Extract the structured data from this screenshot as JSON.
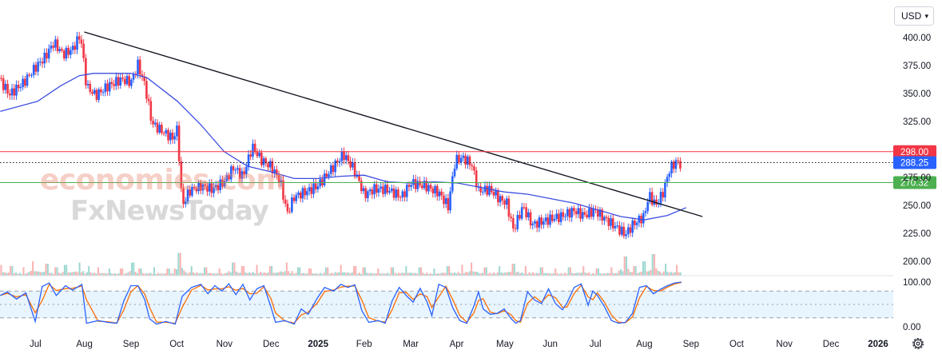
{
  "toolbar": {
    "currency": "USD"
  },
  "watermark": {
    "line1": "economies.com",
    "line2": "FxNewsToday"
  },
  "price_axis": {
    "ticks": [
      "400.00",
      "375.00",
      "350.00",
      "325.00",
      "275.00",
      "250.00",
      "225.00",
      "200.00"
    ]
  },
  "stoch_axis": {
    "ticks": [
      "100.00",
      "0.00"
    ]
  },
  "time_axis": {
    "ticks": [
      {
        "label": "Jul",
        "bold": false
      },
      {
        "label": "Aug",
        "bold": false
      },
      {
        "label": "Sep",
        "bold": false
      },
      {
        "label": "Oct",
        "bold": false
      },
      {
        "label": "Nov",
        "bold": false
      },
      {
        "label": "Dec",
        "bold": false
      },
      {
        "label": "2025",
        "bold": true
      },
      {
        "label": "Feb",
        "bold": false
      },
      {
        "label": "Mar",
        "bold": false
      },
      {
        "label": "Apr",
        "bold": false
      },
      {
        "label": "May",
        "bold": false
      },
      {
        "label": "Jun",
        "bold": false
      },
      {
        "label": "Jul",
        "bold": false
      },
      {
        "label": "Aug",
        "bold": false
      },
      {
        "label": "Sep",
        "bold": false
      },
      {
        "label": "Oct",
        "bold": false
      },
      {
        "label": "Nov",
        "bold": false
      },
      {
        "label": "Dec",
        "bold": false
      },
      {
        "label": "2026",
        "bold": true
      }
    ]
  },
  "levels": [
    {
      "value": 298.0,
      "label": "298.00",
      "color": "#f23645",
      "style": "solid"
    },
    {
      "value": 288.25,
      "label": "288.25",
      "color": "#2962ff",
      "style": "dotted"
    },
    {
      "value": 270.32,
      "label": "270.32",
      "color": "#4caf50",
      "style": "solid"
    }
  ],
  "chart_data": {
    "type": "candlestick",
    "x_unit": "month index (0 = start of Jul 2024)",
    "ylim": [
      190,
      410
    ],
    "trendline": [
      {
        "x": 1.0,
        "y": 405
      },
      {
        "x": 14.25,
        "y": 240
      }
    ],
    "moving_average": [
      {
        "x": -0.8,
        "y": 334
      },
      {
        "x": 0.0,
        "y": 343
      },
      {
        "x": 0.5,
        "y": 357
      },
      {
        "x": 0.9,
        "y": 366
      },
      {
        "x": 1.2,
        "y": 368
      },
      {
        "x": 2.0,
        "y": 368
      },
      {
        "x": 2.35,
        "y": 364
      },
      {
        "x": 3.0,
        "y": 343
      },
      {
        "x": 3.5,
        "y": 322
      },
      {
        "x": 4.0,
        "y": 298
      },
      {
        "x": 4.5,
        "y": 285
      },
      {
        "x": 5.0,
        "y": 280
      },
      {
        "x": 5.5,
        "y": 274
      },
      {
        "x": 6.0,
        "y": 274
      },
      {
        "x": 6.5,
        "y": 276
      },
      {
        "x": 7.0,
        "y": 277
      },
      {
        "x": 7.5,
        "y": 271
      },
      {
        "x": 8.0,
        "y": 270
      },
      {
        "x": 8.5,
        "y": 271
      },
      {
        "x": 9.0,
        "y": 270
      },
      {
        "x": 9.5,
        "y": 266
      },
      {
        "x": 10.0,
        "y": 262
      },
      {
        "x": 10.5,
        "y": 260
      },
      {
        "x": 11.0,
        "y": 256
      },
      {
        "x": 11.5,
        "y": 252
      },
      {
        "x": 12.0,
        "y": 246
      },
      {
        "x": 12.5,
        "y": 240
      },
      {
        "x": 13.0,
        "y": 237
      },
      {
        "x": 13.5,
        "y": 241
      },
      {
        "x": 13.9,
        "y": 248
      }
    ],
    "price_path": [
      {
        "x": -0.8,
        "y": 364
      },
      {
        "x": -0.6,
        "y": 350
      },
      {
        "x": -0.3,
        "y": 358
      },
      {
        "x": 0.0,
        "y": 373
      },
      {
        "x": 0.15,
        "y": 380
      },
      {
        "x": 0.35,
        "y": 395
      },
      {
        "x": 0.55,
        "y": 386
      },
      {
        "x": 0.75,
        "y": 392
      },
      {
        "x": 0.92,
        "y": 405
      },
      {
        "x": 1.05,
        "y": 358
      },
      {
        "x": 1.25,
        "y": 349
      },
      {
        "x": 1.5,
        "y": 355
      },
      {
        "x": 1.8,
        "y": 360
      },
      {
        "x": 2.0,
        "y": 358
      },
      {
        "x": 2.15,
        "y": 375
      },
      {
        "x": 2.3,
        "y": 358
      },
      {
        "x": 2.45,
        "y": 325
      },
      {
        "x": 2.7,
        "y": 318
      },
      {
        "x": 2.9,
        "y": 312
      },
      {
        "x": 3.0,
        "y": 320
      },
      {
        "x": 3.05,
        "y": 282
      },
      {
        "x": 3.1,
        "y": 250
      },
      {
        "x": 3.25,
        "y": 262
      },
      {
        "x": 3.5,
        "y": 265
      },
      {
        "x": 3.75,
        "y": 262
      },
      {
        "x": 4.0,
        "y": 270
      },
      {
        "x": 4.2,
        "y": 285
      },
      {
        "x": 4.4,
        "y": 278
      },
      {
        "x": 4.6,
        "y": 305
      },
      {
        "x": 4.8,
        "y": 292
      },
      {
        "x": 5.0,
        "y": 285
      },
      {
        "x": 5.2,
        "y": 270
      },
      {
        "x": 5.35,
        "y": 240
      },
      {
        "x": 5.5,
        "y": 255
      },
      {
        "x": 5.8,
        "y": 262
      },
      {
        "x": 6.0,
        "y": 268
      },
      {
        "x": 6.3,
        "y": 285
      },
      {
        "x": 6.55,
        "y": 298
      },
      {
        "x": 6.75,
        "y": 285
      },
      {
        "x": 6.9,
        "y": 270
      },
      {
        "x": 7.0,
        "y": 258
      },
      {
        "x": 7.2,
        "y": 262
      },
      {
        "x": 7.5,
        "y": 262
      },
      {
        "x": 7.8,
        "y": 258
      },
      {
        "x": 8.0,
        "y": 272
      },
      {
        "x": 8.3,
        "y": 270
      },
      {
        "x": 8.6,
        "y": 262
      },
      {
        "x": 8.8,
        "y": 248
      },
      {
        "x": 8.95,
        "y": 288
      },
      {
        "x": 9.1,
        "y": 290
      },
      {
        "x": 9.3,
        "y": 285
      },
      {
        "x": 9.45,
        "y": 262
      },
      {
        "x": 9.7,
        "y": 265
      },
      {
        "x": 9.9,
        "y": 258
      },
      {
        "x": 10.05,
        "y": 255
      },
      {
        "x": 10.2,
        "y": 230
      },
      {
        "x": 10.4,
        "y": 250
      },
      {
        "x": 10.6,
        "y": 232
      },
      {
        "x": 10.9,
        "y": 234
      },
      {
        "x": 11.2,
        "y": 238
      },
      {
        "x": 11.5,
        "y": 246
      },
      {
        "x": 11.7,
        "y": 243
      },
      {
        "x": 11.95,
        "y": 248
      },
      {
        "x": 12.2,
        "y": 238
      },
      {
        "x": 12.4,
        "y": 230
      },
      {
        "x": 12.6,
        "y": 222
      },
      {
        "x": 12.75,
        "y": 230
      },
      {
        "x": 12.9,
        "y": 235
      },
      {
        "x": 13.0,
        "y": 238
      },
      {
        "x": 13.1,
        "y": 258
      },
      {
        "x": 13.25,
        "y": 250
      },
      {
        "x": 13.4,
        "y": 262
      },
      {
        "x": 13.55,
        "y": 285
      },
      {
        "x": 13.7,
        "y": 292
      },
      {
        "x": 13.8,
        "y": 288
      }
    ],
    "stochastic": {
      "y_range": [
        0,
        100
      ],
      "bands": [
        20,
        50,
        80
      ],
      "k_path": [
        {
          "x": -0.8,
          "y": 70
        },
        {
          "x": -0.65,
          "y": 78
        },
        {
          "x": -0.45,
          "y": 62
        },
        {
          "x": -0.25,
          "y": 76
        },
        {
          "x": -0.05,
          "y": 12
        },
        {
          "x": 0.1,
          "y": 90
        },
        {
          "x": 0.25,
          "y": 98
        },
        {
          "x": 0.4,
          "y": 70
        },
        {
          "x": 0.6,
          "y": 92
        },
        {
          "x": 0.75,
          "y": 82
        },
        {
          "x": 0.95,
          "y": 95
        },
        {
          "x": 1.05,
          "y": 8
        },
        {
          "x": 1.3,
          "y": 14
        },
        {
          "x": 1.5,
          "y": 10
        },
        {
          "x": 1.7,
          "y": 8
        },
        {
          "x": 1.85,
          "y": 58
        },
        {
          "x": 2.0,
          "y": 92
        },
        {
          "x": 2.15,
          "y": 92
        },
        {
          "x": 2.3,
          "y": 60
        },
        {
          "x": 2.4,
          "y": 18
        },
        {
          "x": 2.55,
          "y": 6
        },
        {
          "x": 2.75,
          "y": 12
        },
        {
          "x": 2.95,
          "y": 6
        },
        {
          "x": 3.1,
          "y": 68
        },
        {
          "x": 3.3,
          "y": 88
        },
        {
          "x": 3.5,
          "y": 95
        },
        {
          "x": 3.65,
          "y": 74
        },
        {
          "x": 3.8,
          "y": 92
        },
        {
          "x": 3.95,
          "y": 80
        },
        {
          "x": 4.1,
          "y": 96
        },
        {
          "x": 4.25,
          "y": 72
        },
        {
          "x": 4.4,
          "y": 95
        },
        {
          "x": 4.55,
          "y": 60
        },
        {
          "x": 4.7,
          "y": 85
        },
        {
          "x": 4.85,
          "y": 92
        },
        {
          "x": 5.0,
          "y": 45
        },
        {
          "x": 5.1,
          "y": 10
        },
        {
          "x": 5.3,
          "y": 14
        },
        {
          "x": 5.5,
          "y": 6
        },
        {
          "x": 5.65,
          "y": 40
        },
        {
          "x": 5.8,
          "y": 28
        },
        {
          "x": 6.0,
          "y": 65
        },
        {
          "x": 6.15,
          "y": 88
        },
        {
          "x": 6.35,
          "y": 80
        },
        {
          "x": 6.5,
          "y": 95
        },
        {
          "x": 6.65,
          "y": 88
        },
        {
          "x": 6.8,
          "y": 94
        },
        {
          "x": 6.95,
          "y": 36
        },
        {
          "x": 7.1,
          "y": 10
        },
        {
          "x": 7.3,
          "y": 14
        },
        {
          "x": 7.45,
          "y": 8
        },
        {
          "x": 7.6,
          "y": 58
        },
        {
          "x": 7.75,
          "y": 88
        },
        {
          "x": 7.9,
          "y": 70
        },
        {
          "x": 8.05,
          "y": 55
        },
        {
          "x": 8.2,
          "y": 86
        },
        {
          "x": 8.35,
          "y": 55
        },
        {
          "x": 8.45,
          "y": 25
        },
        {
          "x": 8.6,
          "y": 95
        },
        {
          "x": 8.75,
          "y": 88
        },
        {
          "x": 8.9,
          "y": 42
        },
        {
          "x": 9.05,
          "y": 14
        },
        {
          "x": 9.2,
          "y": 8
        },
        {
          "x": 9.35,
          "y": 46
        },
        {
          "x": 9.45,
          "y": 78
        },
        {
          "x": 9.55,
          "y": 40
        },
        {
          "x": 9.7,
          "y": 28
        },
        {
          "x": 9.85,
          "y": 30
        },
        {
          "x": 10.0,
          "y": 40
        },
        {
          "x": 10.15,
          "y": 18
        },
        {
          "x": 10.25,
          "y": 8
        },
        {
          "x": 10.35,
          "y": 14
        },
        {
          "x": 10.5,
          "y": 78
        },
        {
          "x": 10.65,
          "y": 60
        },
        {
          "x": 10.8,
          "y": 52
        },
        {
          "x": 10.95,
          "y": 85
        },
        {
          "x": 11.1,
          "y": 52
        },
        {
          "x": 11.25,
          "y": 38
        },
        {
          "x": 11.35,
          "y": 54
        },
        {
          "x": 11.5,
          "y": 88
        },
        {
          "x": 11.65,
          "y": 96
        },
        {
          "x": 11.8,
          "y": 48
        },
        {
          "x": 11.9,
          "y": 80
        },
        {
          "x": 12.0,
          "y": 70
        },
        {
          "x": 12.15,
          "y": 45
        },
        {
          "x": 12.3,
          "y": 14
        },
        {
          "x": 12.45,
          "y": 8
        },
        {
          "x": 12.6,
          "y": 10
        },
        {
          "x": 12.75,
          "y": 30
        },
        {
          "x": 12.9,
          "y": 88
        },
        {
          "x": 13.05,
          "y": 92
        },
        {
          "x": 13.2,
          "y": 74
        },
        {
          "x": 13.35,
          "y": 84
        },
        {
          "x": 13.5,
          "y": 92
        },
        {
          "x": 13.65,
          "y": 98
        },
        {
          "x": 13.8,
          "y": 100
        }
      ]
    },
    "volume": [
      {
        "x": -0.78,
        "v": 0.45
      },
      {
        "x": -0.55,
        "v": 0.4
      },
      {
        "x": -0.3,
        "v": 0.35
      },
      {
        "x": -0.1,
        "v": 0.6
      },
      {
        "x": 0.2,
        "v": 0.5
      },
      {
        "x": 0.4,
        "v": 0.35
      },
      {
        "x": 0.6,
        "v": 0.45
      },
      {
        "x": 0.9,
        "v": 0.55
      },
      {
        "x": 1.1,
        "v": 0.4
      },
      {
        "x": 1.3,
        "v": 0.35
      },
      {
        "x": 1.55,
        "v": 0.3
      },
      {
        "x": 1.8,
        "v": 0.3
      },
      {
        "x": 2.05,
        "v": 0.55
      },
      {
        "x": 2.2,
        "v": 0.3
      },
      {
        "x": 2.5,
        "v": 0.35
      },
      {
        "x": 2.8,
        "v": 0.3
      },
      {
        "x": 3.05,
        "v": 0.95
      },
      {
        "x": 3.3,
        "v": 0.4
      },
      {
        "x": 3.6,
        "v": 0.35
      },
      {
        "x": 3.9,
        "v": 0.3
      },
      {
        "x": 4.2,
        "v": 0.55
      },
      {
        "x": 4.4,
        "v": 0.4
      },
      {
        "x": 4.7,
        "v": 0.45
      },
      {
        "x": 5.0,
        "v": 0.4
      },
      {
        "x": 5.35,
        "v": 0.55
      },
      {
        "x": 5.6,
        "v": 0.35
      },
      {
        "x": 5.85,
        "v": 0.3
      },
      {
        "x": 6.2,
        "v": 0.35
      },
      {
        "x": 6.5,
        "v": 0.45
      },
      {
        "x": 6.8,
        "v": 0.4
      },
      {
        "x": 7.0,
        "v": 0.35
      },
      {
        "x": 7.3,
        "v": 0.3
      },
      {
        "x": 7.6,
        "v": 0.35
      },
      {
        "x": 7.9,
        "v": 0.4
      },
      {
        "x": 8.2,
        "v": 0.35
      },
      {
        "x": 8.5,
        "v": 0.3
      },
      {
        "x": 8.8,
        "v": 0.4
      },
      {
        "x": 9.1,
        "v": 0.45
      },
      {
        "x": 9.3,
        "v": 0.55
      },
      {
        "x": 9.6,
        "v": 0.35
      },
      {
        "x": 9.9,
        "v": 0.4
      },
      {
        "x": 10.2,
        "v": 0.5
      },
      {
        "x": 10.45,
        "v": 0.4
      },
      {
        "x": 10.8,
        "v": 0.35
      },
      {
        "x": 11.1,
        "v": 0.3
      },
      {
        "x": 11.4,
        "v": 0.35
      },
      {
        "x": 11.7,
        "v": 0.4
      },
      {
        "x": 12.0,
        "v": 0.3
      },
      {
        "x": 12.3,
        "v": 0.35
      },
      {
        "x": 12.6,
        "v": 0.8
      },
      {
        "x": 12.8,
        "v": 0.4
      },
      {
        "x": 13.0,
        "v": 0.6
      },
      {
        "x": 13.2,
        "v": 0.9
      },
      {
        "x": 13.45,
        "v": 0.5
      },
      {
        "x": 13.7,
        "v": 0.45
      }
    ]
  }
}
